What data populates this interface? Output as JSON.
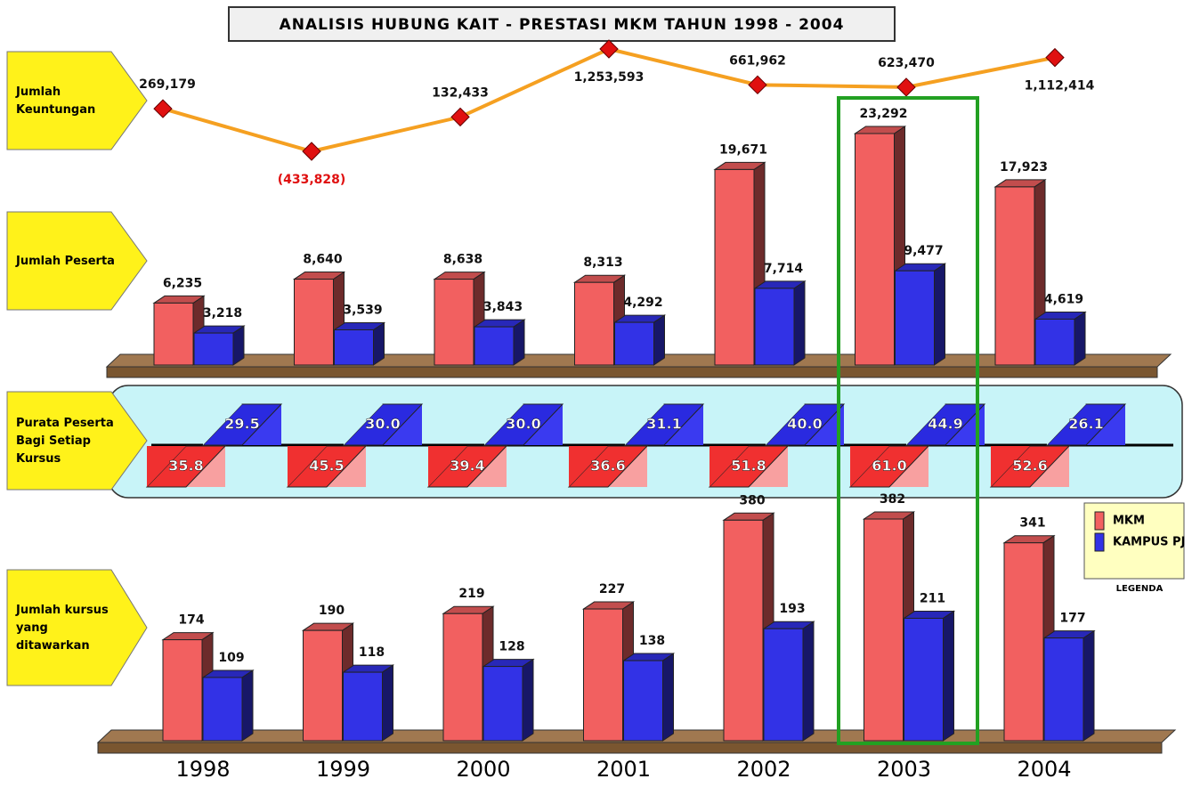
{
  "title": "ANALISIS HUBUNG KAIT - PRESTASI MKM TAHUN 1998 - 2004",
  "chart_data": [
    {
      "type": "line",
      "label": "Jumlah Keuntungan",
      "values": [
        269179,
        -433828,
        132433,
        1253593,
        661962,
        623470,
        1112414
      ],
      "value_labels": [
        "269,179",
        "(433,828)",
        "132,433",
        "1,253,593",
        "661,962",
        "623,470",
        "1,112,414"
      ],
      "color": "#f5a021",
      "marker_color": "#e01010",
      "negative_label_color": "#e01010"
    },
    {
      "type": "bar",
      "label": "Jumlah Peserta",
      "series": [
        {
          "color": "#f26060",
          "values": [
            6235,
            8640,
            8638,
            8313,
            19671,
            23292,
            17923
          ],
          "value_labels": [
            "6,235",
            "8,640",
            "8,638",
            "8,313",
            "19,671",
            "23,292",
            "17,923"
          ]
        },
        {
          "color": "#3232e6",
          "values": [
            3218,
            3539,
            3843,
            4292,
            7714,
            9477,
            4619
          ],
          "value_labels": [
            "3,218",
            "3,539",
            "3,843",
            "4,292",
            "7,714",
            "9,477",
            "4,619"
          ]
        }
      ]
    },
    {
      "type": "boxes",
      "label": "Purata Peserta Bagi Setiap Kursus",
      "series": [
        {
          "color": "#f03030",
          "values": [
            35.8,
            45.5,
            39.4,
            36.6,
            51.8,
            61.0,
            52.6
          ],
          "value_labels": [
            "35.8",
            "45.5",
            "39.4",
            "36.6",
            "51.8",
            "61.0",
            "52.6"
          ]
        },
        {
          "color": "#2a2ae0",
          "values": [
            29.5,
            30.0,
            30.0,
            31.1,
            40.0,
            44.9,
            26.1
          ],
          "value_labels": [
            "29.5",
            "30.0",
            "30.0",
            "31.1",
            "40.0",
            "44.9",
            "26.1"
          ]
        }
      ]
    },
    {
      "type": "bar",
      "label": "Jumlah kursus yang ditawarkan",
      "categories": [
        "1998",
        "1999",
        "2000",
        "2001",
        "2002",
        "2003",
        "2004"
      ],
      "series": [
        {
          "name": "MKM",
          "color": "#f26060",
          "values": [
            174,
            190,
            219,
            227,
            380,
            382,
            341
          ]
        },
        {
          "name": "KAMPUS PJ",
          "color": "#3232e6",
          "values": [
            109,
            118,
            128,
            138,
            193,
            211,
            177
          ]
        }
      ],
      "legend": {
        "title": "LEGENDA",
        "position": "right"
      },
      "highlight": "2003"
    }
  ]
}
